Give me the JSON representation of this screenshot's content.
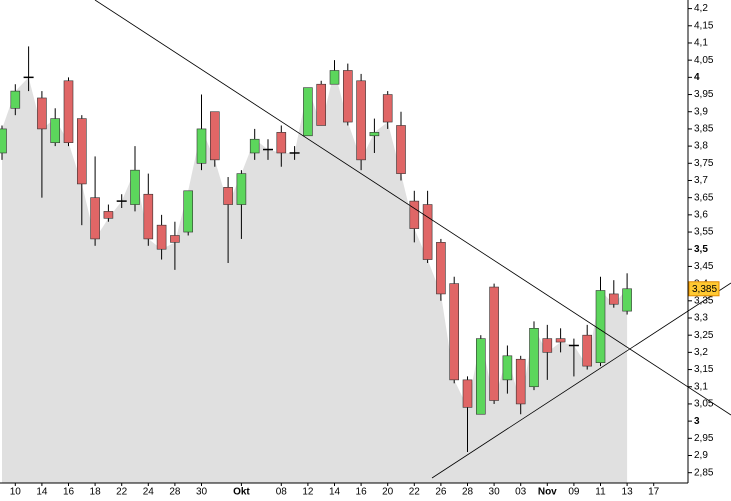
{
  "chart_data": {
    "type": "candlestick",
    "categories": [
      null,
      "10",
      null,
      "14",
      null,
      "16",
      null,
      "18",
      null,
      "22",
      null,
      "24",
      null,
      "28",
      null,
      "30",
      null,
      null,
      "Okt",
      null,
      null,
      "08",
      null,
      "12",
      null,
      "14",
      null,
      "16",
      null,
      "20",
      null,
      "22",
      null,
      "26",
      null,
      "28",
      null,
      "30",
      null,
      "03",
      null,
      "Nov",
      null,
      "09",
      null,
      "11",
      null,
      "13",
      null,
      "17"
    ],
    "open": [
      3.78,
      3.91,
      4.0,
      3.94,
      3.81,
      3.99,
      3.88,
      3.65,
      3.61,
      3.64,
      3.63,
      3.66,
      3.57,
      3.54,
      3.55,
      3.75,
      3.9,
      3.68,
      3.63,
      3.78,
      3.79,
      3.84,
      3.78,
      3.83,
      3.98,
      3.98,
      4.02,
      3.99,
      3.83,
      3.95,
      3.86,
      3.64,
      3.63,
      3.52,
      3.4,
      3.12,
      3.02,
      3.39,
      3.12,
      3.18,
      3.1,
      3.24,
      3.24,
      3.22,
      3.25,
      3.17,
      3.37,
      3.32,
      null,
      null
    ],
    "high": [
      3.86,
      3.98,
      4.09,
      3.96,
      3.91,
      4.0,
      3.89,
      3.77,
      3.63,
      3.66,
      3.8,
      3.72,
      3.6,
      3.58,
      3.67,
      3.95,
      3.9,
      3.71,
      3.73,
      3.85,
      3.82,
      3.86,
      3.8,
      3.97,
      3.99,
      4.05,
      4.04,
      4.01,
      3.88,
      3.96,
      3.9,
      3.67,
      3.67,
      3.53,
      3.42,
      3.13,
      3.25,
      3.4,
      3.22,
      3.19,
      3.29,
      3.28,
      3.27,
      3.24,
      3.28,
      3.42,
      3.41,
      3.43,
      null,
      null
    ],
    "low": [
      3.76,
      3.89,
      3.96,
      3.65,
      3.8,
      3.8,
      3.57,
      3.51,
      3.58,
      3.62,
      3.61,
      3.51,
      3.47,
      3.44,
      3.54,
      3.73,
      3.74,
      3.46,
      3.53,
      3.76,
      3.76,
      3.74,
      3.76,
      3.83,
      3.86,
      3.98,
      3.86,
      3.73,
      3.78,
      3.85,
      3.7,
      3.52,
      3.46,
      3.35,
      3.11,
      2.91,
      3.02,
      3.05,
      3.08,
      3.02,
      3.09,
      3.12,
      3.2,
      3.13,
      3.15,
      3.16,
      3.33,
      3.31,
      null,
      null
    ],
    "close": [
      3.85,
      3.96,
      4.0,
      3.85,
      3.88,
      3.81,
      3.69,
      3.53,
      3.59,
      3.64,
      3.73,
      3.53,
      3.5,
      3.52,
      3.67,
      3.85,
      3.76,
      3.63,
      3.72,
      3.82,
      3.79,
      3.78,
      3.78,
      3.97,
      3.86,
      4.02,
      3.87,
      3.76,
      3.84,
      3.87,
      3.72,
      3.56,
      3.47,
      3.37,
      3.12,
      3.04,
      3.24,
      3.06,
      3.19,
      3.05,
      3.27,
      3.2,
      3.23,
      3.22,
      3.16,
      3.38,
      3.34,
      3.385,
      null,
      null
    ],
    "last_close_label": "3,385",
    "up_color": "#5cd65c",
    "down_color": "#e06666",
    "area_color": "#e0e0e0",
    "ylim": [
      2.82,
      4.225
    ],
    "yticks": [
      {
        "value": 2.85,
        "label": "2,85"
      },
      {
        "value": 2.9,
        "label": "2,9"
      },
      {
        "value": 2.95,
        "label": "2,95"
      },
      3,
      {
        "value": 3.05,
        "label": "3,05"
      },
      {
        "value": 3.1,
        "label": "3,1"
      },
      {
        "value": 3.15,
        "label": "3,15"
      },
      {
        "value": 3.2,
        "label": "3,2"
      },
      {
        "value": 3.25,
        "label": "3,25"
      },
      {
        "value": 3.3,
        "label": "3,3"
      },
      {
        "value": 3.35,
        "label": "3,35"
      },
      {
        "value": 3.4,
        "label": "3,4"
      },
      {
        "value": 3.45,
        "label": "3,45"
      },
      {
        "value": 3.5,
        "label": "3,5"
      },
      {
        "value": 3.55,
        "label": "3,55"
      },
      {
        "value": 3.6,
        "label": "3,6"
      },
      {
        "value": 3.65,
        "label": "3,65"
      },
      {
        "value": 3.7,
        "label": "3,7"
      },
      {
        "value": 3.75,
        "label": "3,75"
      },
      {
        "value": 3.8,
        "label": "3,8"
      },
      {
        "value": 3.85,
        "label": "3,85"
      },
      {
        "value": 3.9,
        "label": "3,9"
      },
      {
        "value": 3.95,
        "label": "3,95"
      },
      4,
      {
        "value": 4.05,
        "label": "4,05"
      },
      {
        "value": 4.1,
        "label": "4,1"
      },
      {
        "value": 4.15,
        "label": "4,15"
      },
      {
        "value": 4.2,
        "label": "4,2"
      }
    ]
  }
}
